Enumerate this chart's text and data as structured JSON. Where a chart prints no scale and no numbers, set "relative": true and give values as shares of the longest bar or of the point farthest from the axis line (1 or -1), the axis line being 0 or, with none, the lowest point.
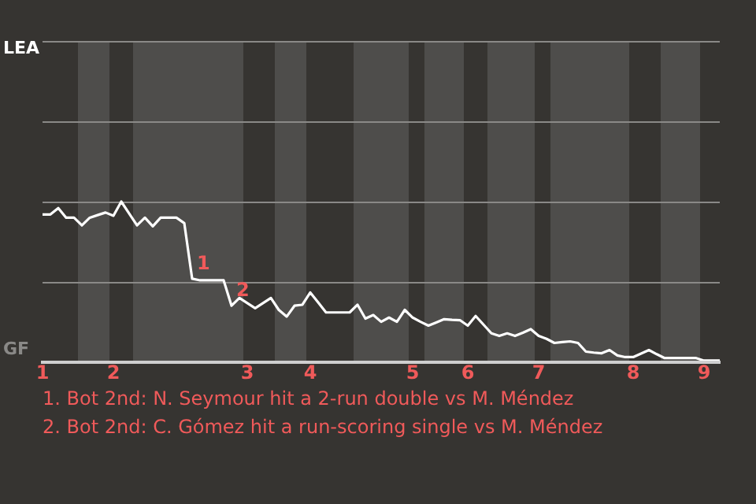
{
  "chart_data": {
    "type": "line",
    "relative": true,
    "categories": [
      "1",
      null,
      null,
      null,
      null,
      null,
      null,
      null,
      null,
      "2",
      null,
      null,
      null,
      null,
      null,
      null,
      null,
      null,
      null,
      null,
      null,
      null,
      null,
      null,
      null,
      null,
      "3",
      null,
      null,
      null,
      null,
      null,
      null,
      null,
      "4",
      null,
      null,
      null,
      null,
      null,
      null,
      null,
      null,
      null,
      null,
      null,
      null,
      "5",
      null,
      null,
      null,
      null,
      null,
      null,
      "6",
      null,
      null,
      null,
      null,
      null,
      null,
      null,
      null,
      "7",
      null,
      null,
      null,
      null,
      null,
      null,
      null,
      null,
      null,
      null,
      null,
      "8",
      null,
      null,
      null,
      null,
      null,
      null,
      null,
      null,
      "9",
      null,
      null
    ],
    "series": [
      {
        "color": "#ffffff",
        "values": [
          0.92,
          0.92,
          0.96,
          0.9,
          0.9,
          0.852,
          0.9,
          0.916,
          0.932,
          0.912,
          1,
          0.926,
          0.852,
          0.9,
          0.846,
          0.9,
          0.9,
          0.9,
          0.866,
          0.52,
          0.51,
          0.51,
          0.51,
          0.51,
          0.352,
          0.4,
          0.368,
          0.336,
          0.368,
          0.4,
          0.326,
          0.284,
          0.352,
          0.358,
          0.434,
          0.372,
          0.31,
          0.31,
          0.31,
          0.31,
          0.358,
          0.272,
          0.294,
          0.252,
          0.278,
          0.252,
          0.326,
          0.278,
          0.252,
          0.228,
          0.248,
          0.268,
          0.264,
          0.262,
          0.228,
          0.288,
          0.234,
          0.18,
          0.164,
          0.18,
          0.164,
          0.184,
          0.206,
          0.164,
          0.146,
          0.12,
          0.126,
          0.13,
          0.12,
          0.066,
          0.06,
          0.056,
          0.076,
          0.042,
          0.032,
          0.032,
          0.054,
          0.076,
          0.05,
          0.026,
          0.026,
          0.026,
          0.026,
          0.026,
          0.01,
          0.01,
          0.01
        ]
      }
    ],
    "ref_lines": [
      {
        "axis": "y",
        "value": 0.5,
        "color": "#8a8987"
      }
    ],
    "marker": "none",
    "line_style": "solid",
    "annotations": [
      "LEA",
      "GF",
      {
        "text": "1",
        "y": 0.52
      },
      {
        "text": "2",
        "y": 0.352
      },
      "1. Bot 2nd: N. Seymour hit a 2-run double vs M. Méndez",
      "2. Bot 2nd: C. Gómez hit a run-scoring single vs M. Méndez"
    ]
  }
}
